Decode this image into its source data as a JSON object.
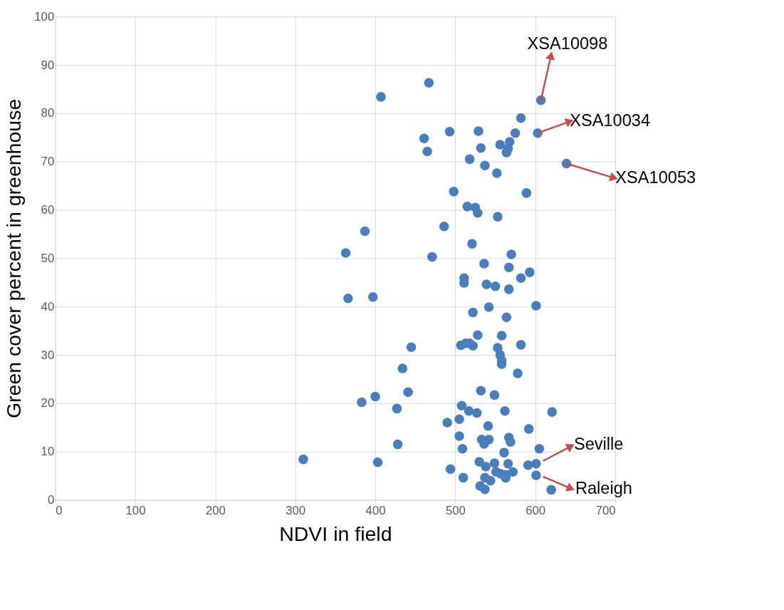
{
  "chart_data": {
    "type": "scatter",
    "xlabel": "NDVI in field",
    "ylabel": "Green cover percent in greenhouse",
    "xlim": [
      0,
      700
    ],
    "xticks": [
      0,
      100,
      200,
      300,
      400,
      500,
      600,
      700
    ],
    "ylim": [
      0,
      100
    ],
    "yticks": [
      0,
      10,
      20,
      30,
      40,
      50,
      60,
      70,
      80,
      90,
      100
    ],
    "grid": true,
    "marker": "circle",
    "series": [
      {
        "color": "#4a7ebb",
        "x": [
          310,
          407,
          467,
          461,
          465,
          493,
          529,
          582,
          607,
          575,
          603,
          568,
          556,
          566,
          564,
          532,
          518,
          537,
          552,
          639,
          498,
          515,
          525,
          528,
          553,
          589,
          486,
          387,
          363,
          471,
          521,
          570,
          536,
          567,
          593,
          582,
          511,
          511,
          539,
          550,
          567,
          366,
          397,
          542,
          601,
          522,
          564,
          445,
          507,
          513,
          518,
          522,
          528,
          558,
          553,
          556,
          558,
          558,
          582,
          578,
          434,
          532,
          549,
          441,
          400,
          383,
          427,
          508,
          517,
          527,
          562,
          621,
          490,
          505,
          541,
          592,
          505,
          533,
          536,
          542,
          567,
          569,
          428,
          509,
          561,
          605,
          403,
          494,
          510,
          530,
          549,
          538,
          566,
          591,
          601,
          551,
          557,
          563,
          572,
          563,
          537,
          544,
          531,
          537,
          601,
          620
        ],
        "values": [
          8.4,
          83.4,
          86.3,
          74.8,
          72.1,
          76.2,
          76.3,
          79,
          82.7,
          75.9,
          75.9,
          74.1,
          73.5,
          72.7,
          71.9,
          72.8,
          70.5,
          69.2,
          67.6,
          69.6,
          63.8,
          60.7,
          60.5,
          59.4,
          58.6,
          63.5,
          56.6,
          55.6,
          51.1,
          50.3,
          53,
          50.8,
          48.9,
          48.1,
          47.1,
          45.9,
          45.9,
          44.9,
          44.6,
          44.2,
          43.6,
          41.7,
          42,
          39.9,
          40.2,
          38.8,
          37.8,
          31.6,
          32,
          32.4,
          32.4,
          31.9,
          34.1,
          34,
          31.5,
          30,
          28.8,
          28.1,
          32.1,
          26.2,
          27.2,
          22.6,
          21.7,
          22.3,
          21.4,
          20.2,
          18.9,
          19.5,
          18.4,
          18,
          18.4,
          18.2,
          16,
          16.7,
          15.3,
          14.7,
          13.2,
          12.5,
          11.6,
          12.5,
          12.9,
          12,
          11.5,
          10.6,
          9.8,
          10.6,
          7.8,
          6.4,
          4.6,
          7.9,
          7.6,
          6.9,
          7.5,
          7.2,
          7.5,
          5.8,
          5.4,
          5.2,
          5.8,
          4.6,
          4.6,
          4,
          2.9,
          2.2,
          5.1,
          2.1
        ]
      }
    ],
    "annotations": [
      {
        "text": "XSA10098",
        "x": 607,
        "y": 82.7
      },
      {
        "text": "XSA10034",
        "x": 603,
        "y": 75.9
      },
      {
        "text": "XSA10053",
        "x": 639,
        "y": 69.6
      },
      {
        "text": "Seville",
        "x": 601,
        "y": 7.5
      },
      {
        "text": "Raleigh",
        "x": 601,
        "y": 5.1
      }
    ]
  }
}
